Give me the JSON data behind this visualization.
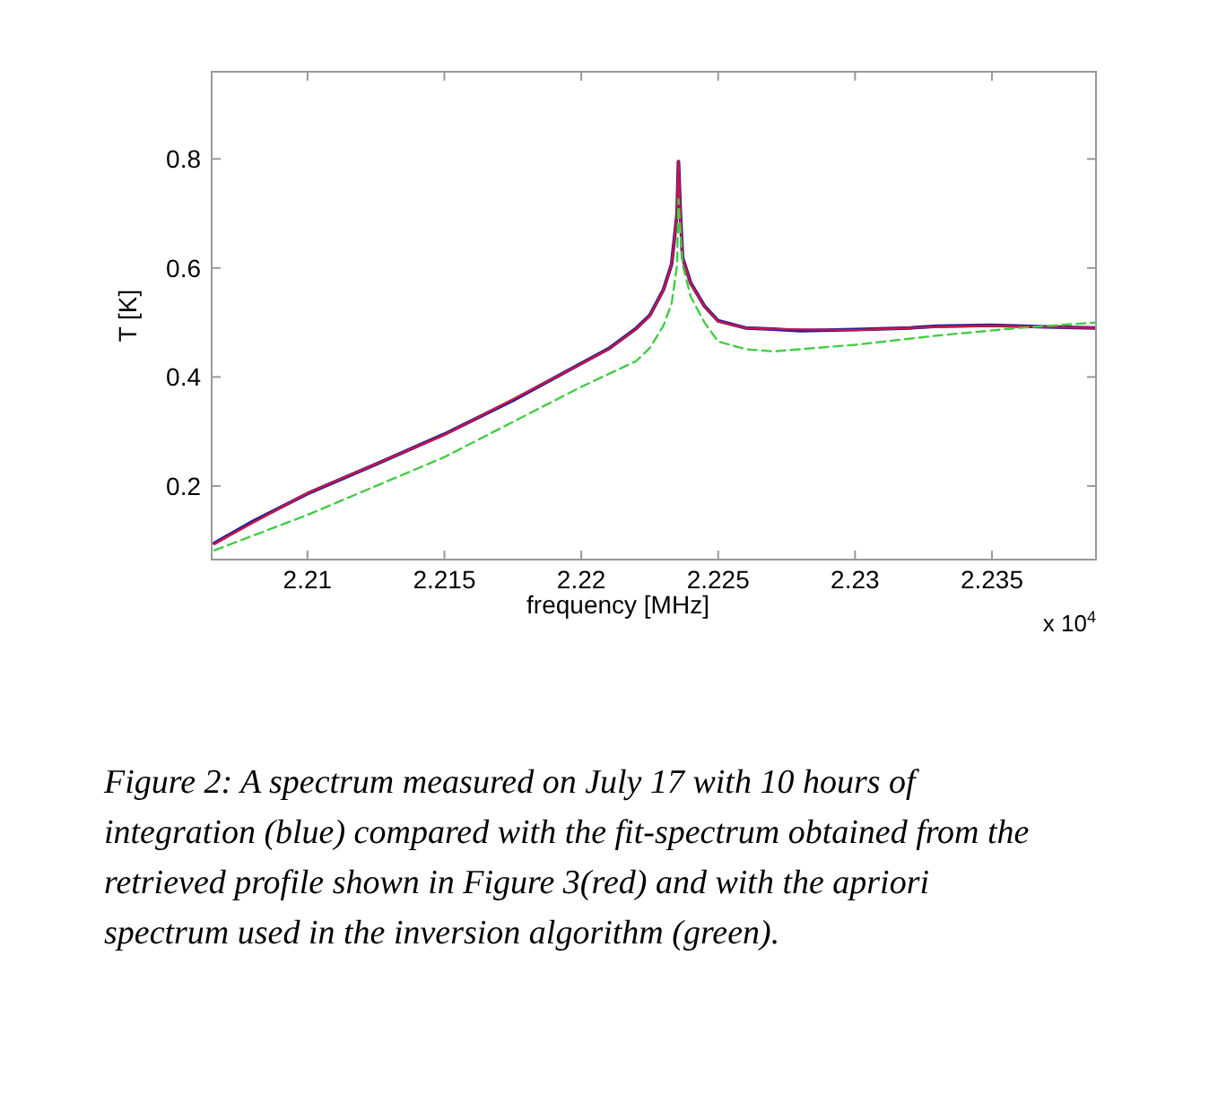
{
  "chart_data": {
    "type": "line",
    "xlabel": "frequency [MHz]",
    "ylabel": "T [K]",
    "xlim": [
      2.2065,
      2.2388
    ],
    "ylim": [
      0.065,
      0.96
    ],
    "xticks": [
      2.21,
      2.215,
      2.22,
      2.225,
      2.23,
      2.235
    ],
    "yticks": [
      0.2,
      0.4,
      0.6,
      0.8
    ],
    "grid": false,
    "series": [
      {
        "color": "#1f1f9a",
        "line_style": "solid",
        "x": [
          2.2066,
          2.208,
          2.21,
          2.2125,
          2.215,
          2.2175,
          2.22,
          2.221,
          2.222,
          2.2225,
          2.223,
          2.2233,
          2.2235,
          2.22355,
          2.22362,
          2.2237,
          2.224,
          2.2245,
          2.225,
          2.226,
          2.227,
          2.228,
          2.23,
          2.232,
          2.233,
          2.235,
          2.237,
          2.2388
        ],
        "values": [
          0.095,
          0.135,
          0.186,
          0.24,
          0.295,
          0.357,
          0.425,
          0.452,
          0.489,
          0.513,
          0.56,
          0.607,
          0.7,
          0.795,
          0.7,
          0.619,
          0.572,
          0.53,
          0.503,
          0.49,
          0.488,
          0.485,
          0.487,
          0.49,
          0.493,
          0.495,
          0.492,
          0.49
        ]
      },
      {
        "color": "#cc1444",
        "line_style": "solid",
        "x": [
          2.2066,
          2.21,
          2.215,
          2.22,
          2.221,
          2.222,
          2.2225,
          2.223,
          2.2233,
          2.2235,
          2.22355,
          2.22362,
          2.2237,
          2.224,
          2.2245,
          2.225,
          2.226,
          2.227,
          2.23,
          2.233,
          2.235,
          2.2388
        ],
        "values": [
          0.094,
          0.187,
          0.294,
          0.424,
          0.451,
          0.488,
          0.512,
          0.559,
          0.606,
          0.7,
          0.796,
          0.7,
          0.618,
          0.571,
          0.529,
          0.502,
          0.49,
          0.488,
          0.486,
          0.492,
          0.494,
          0.49
        ]
      },
      {
        "color": "#44cc44",
        "line_style": "dashed",
        "x": [
          2.2066,
          2.21,
          2.215,
          2.22,
          2.222,
          2.2225,
          2.223,
          2.2233,
          2.2235,
          2.22355,
          2.2237,
          2.224,
          2.2245,
          2.225,
          2.226,
          2.227,
          2.23,
          2.233,
          2.236,
          2.2388
        ],
        "values": [
          0.082,
          0.147,
          0.253,
          0.382,
          0.429,
          0.453,
          0.494,
          0.535,
          0.606,
          0.726,
          0.606,
          0.547,
          0.5,
          0.465,
          0.451,
          0.447,
          0.459,
          0.476,
          0.49,
          0.5
        ]
      }
    ],
    "annotations": [
      "x 10$^{4}$",
      "Figure 2: A spectrum measured on July 17 with 10 hours of integration (blue) compared with the fit-spectrum obtained from the retrieved profile shown in Figure 3(red) and with the apriori spectrum used in the inversion algorithm (green)."
    ]
  }
}
